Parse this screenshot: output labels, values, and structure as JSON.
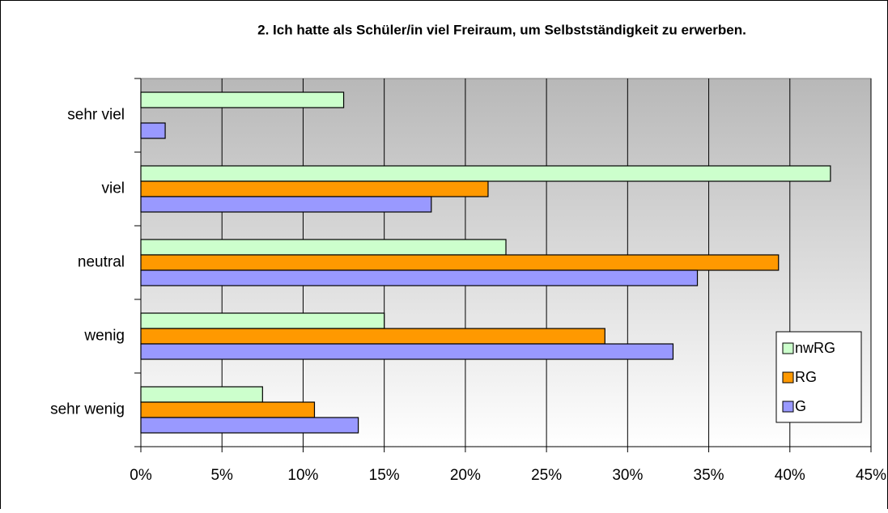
{
  "chart_data": {
    "type": "barh",
    "title": "2. Ich hatte als Schüler/in viel Freiraum, um Selbstständigkeit zu erwerben.",
    "categories": [
      "sehr viel",
      "viel",
      "neutral",
      "wenig",
      "sehr wenig"
    ],
    "series": [
      {
        "name": "nwRG",
        "color": "#ccffcc",
        "values": [
          12.5,
          42.5,
          22.5,
          15.0,
          7.5
        ]
      },
      {
        "name": "RG",
        "color": "#ff9900",
        "values": [
          0,
          21.4,
          39.3,
          28.6,
          10.7
        ]
      },
      {
        "name": "G",
        "color": "#9999ff",
        "values": [
          1.5,
          17.9,
          34.3,
          32.8,
          13.4
        ]
      }
    ],
    "xlim": [
      0,
      45
    ],
    "xticks": [
      {
        "value": 0,
        "label": "0%"
      },
      {
        "value": 5,
        "label": "5%"
      },
      {
        "value": 10,
        "label": "10%"
      },
      {
        "value": 15,
        "label": "15%"
      },
      {
        "value": 20,
        "label": "20%"
      },
      {
        "value": 25,
        "label": "25%"
      },
      {
        "value": 30,
        "label": "30%"
      },
      {
        "value": 35,
        "label": "35%"
      },
      {
        "value": 40,
        "label": "40%"
      },
      {
        "value": 45,
        "label": "45%"
      }
    ],
    "grid": true,
    "legend": "lower right"
  }
}
